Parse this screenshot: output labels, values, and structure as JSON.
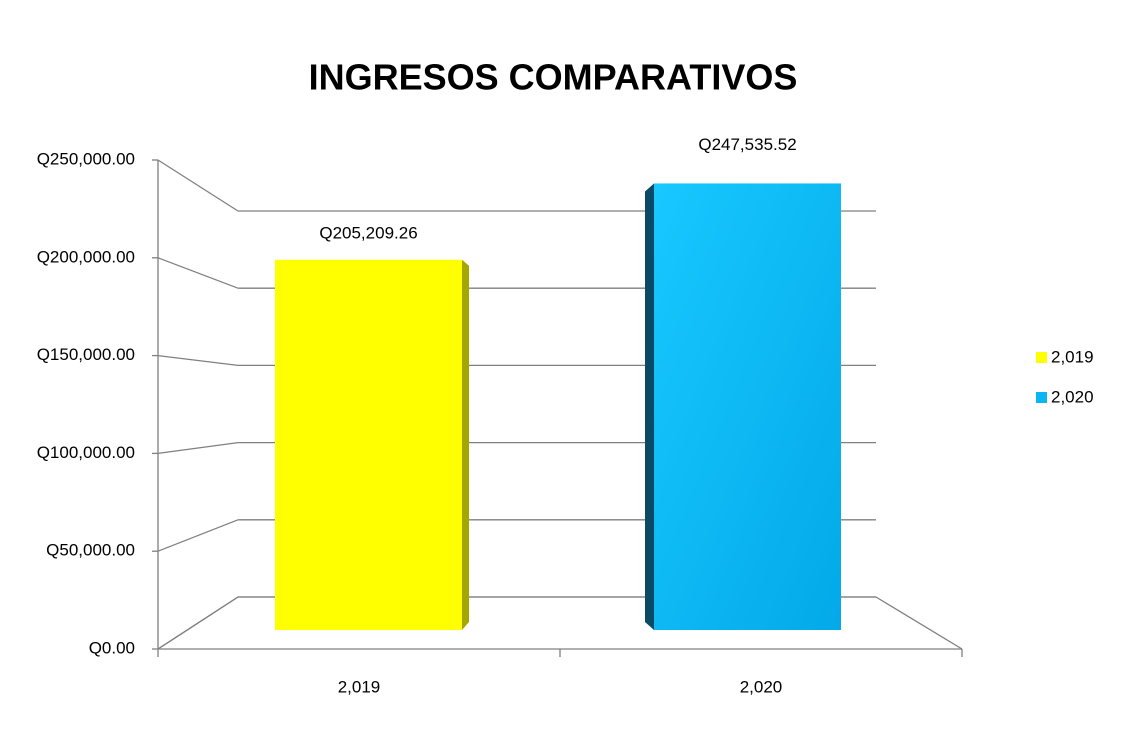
{
  "chart_data": {
    "type": "bar3d",
    "title": "INGRESOS COMPARATIVOS",
    "categories": [
      "2,019",
      "2,020"
    ],
    "series": [
      {
        "name": "2,019",
        "color": "#ffff00",
        "values": [
          205209.26,
          null
        ],
        "value_labels": [
          "Q205,209.26",
          null
        ]
      },
      {
        "name": "2,020",
        "color": "#0ab6f2",
        "values": [
          null,
          247535.52
        ],
        "value_labels": [
          null,
          "Q247,535.52"
        ]
      }
    ],
    "ylim": [
      0,
      250000
    ],
    "yticks": [
      {
        "value": 0,
        "label": "Q0.00"
      },
      {
        "value": 50000,
        "label": "Q50,000.00"
      },
      {
        "value": 100000,
        "label": "Q100,000.00"
      },
      {
        "value": 150000,
        "label": "Q150,000.00"
      },
      {
        "value": 200000,
        "label": "Q200,000.00"
      },
      {
        "value": 250000,
        "label": "Q250,000.00"
      }
    ],
    "grid": true,
    "legend": "right"
  }
}
